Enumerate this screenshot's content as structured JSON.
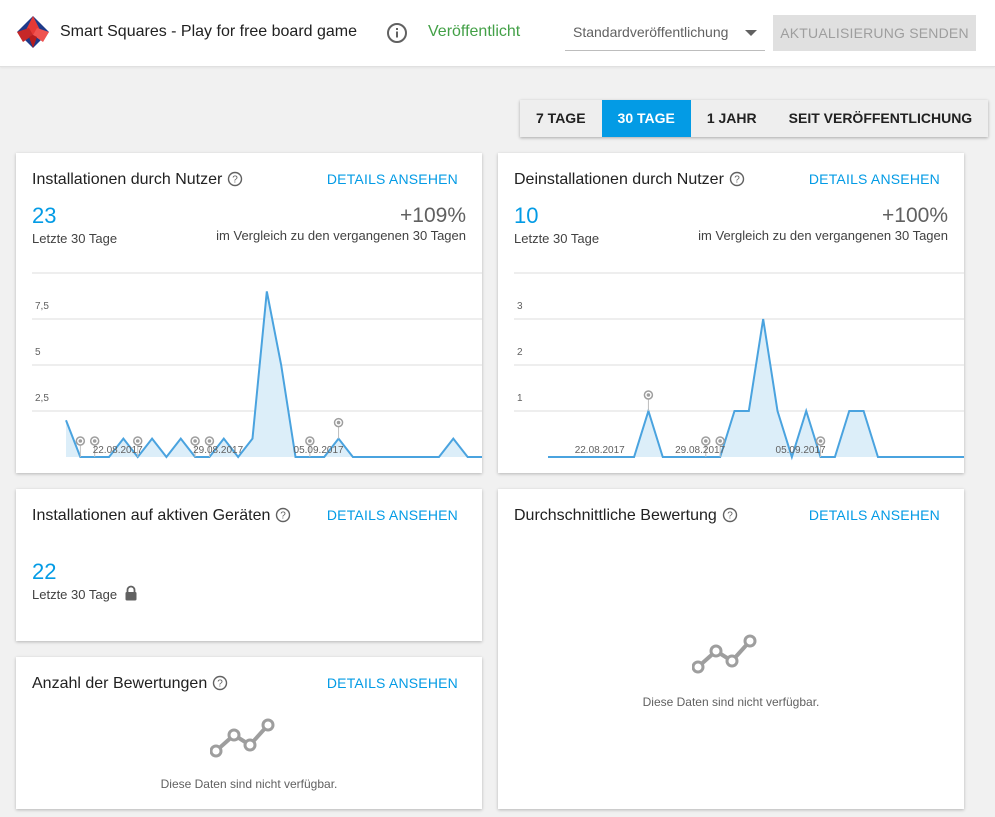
{
  "header": {
    "app_title": "Smart Squares - Play for free board game",
    "status": "Veröffentlicht",
    "track_select": "Standardveröffentlichung",
    "send_button": "AKTUALISIERUNG SENDEN",
    "icons": {
      "logo": "app-logo",
      "info": "info-icon",
      "dropdown": "chevron-down-icon"
    }
  },
  "range_tabs": [
    {
      "label": "7 TAGE",
      "active": false
    },
    {
      "label": "30 TAGE",
      "active": true
    },
    {
      "label": "1 JAHR",
      "active": false
    },
    {
      "label": "SEIT VERÖFFENTLICHUNG",
      "active": false
    }
  ],
  "details_label": "DETAILS ANSEHEN",
  "na_text": "Diese Daten sind nicht verfügbar.",
  "colors": {
    "accent": "#039be5",
    "published": "#43a047",
    "line": "#4aa3df",
    "fill": "#dceef9"
  },
  "cards": {
    "installs": {
      "title": "Installationen durch Nutzer",
      "value": "23",
      "period": "Letzte 30 Tage",
      "change": "+109%",
      "compare": "im Vergleich zu den vergangenen 30 Tagen"
    },
    "uninstalls": {
      "title": "Deinstallationen durch Nutzer",
      "value": "10",
      "period": "Letzte 30 Tage",
      "change": "+100%",
      "compare": "im Vergleich zu den vergangenen 30 Tagen"
    },
    "active": {
      "title": "Installationen auf aktiven Geräten",
      "value": "22",
      "period": "Letzte 30 Tage"
    },
    "avg_rating": {
      "title": "Durchschnittliche Bewertung"
    },
    "rating_count": {
      "title": "Anzahl der Bewertungen"
    }
  },
  "chart_data": [
    {
      "type": "area",
      "series": [
        {
          "values": [
            2,
            0,
            0,
            0,
            1,
            0,
            1,
            0,
            1,
            0,
            0,
            1,
            0,
            1,
            9,
            5,
            0,
            0,
            0,
            1,
            0,
            0,
            0,
            0,
            0,
            0,
            0,
            1,
            0,
            0
          ]
        }
      ],
      "x_tick_labels": [
        "22.08.2017",
        "29.08.2017",
        "05.09.2017"
      ],
      "x_tick_positions": [
        2,
        9,
        16
      ],
      "y_ticks": [
        "2,5",
        "5",
        "7,5",
        "10"
      ],
      "ylim": [
        0,
        10
      ],
      "markers": [
        1,
        2,
        5,
        9,
        10,
        17,
        19
      ]
    },
    {
      "type": "area",
      "series": [
        {
          "values": [
            0,
            0,
            0,
            0,
            0,
            0,
            0,
            1,
            0,
            0,
            0,
            0,
            0,
            1,
            1,
            3,
            1,
            0,
            1,
            0,
            0,
            1,
            1,
            0,
            0,
            0,
            0,
            0,
            0,
            0
          ]
        }
      ],
      "x_tick_labels": [
        "22.08.2017",
        "29.08.2017",
        "05.09.2017"
      ],
      "x_tick_positions": [
        2,
        9,
        16
      ],
      "y_ticks": [
        "1",
        "2",
        "3",
        "4"
      ],
      "ylim": [
        0,
        4
      ],
      "markers": [
        7,
        11,
        12,
        19
      ]
    }
  ]
}
